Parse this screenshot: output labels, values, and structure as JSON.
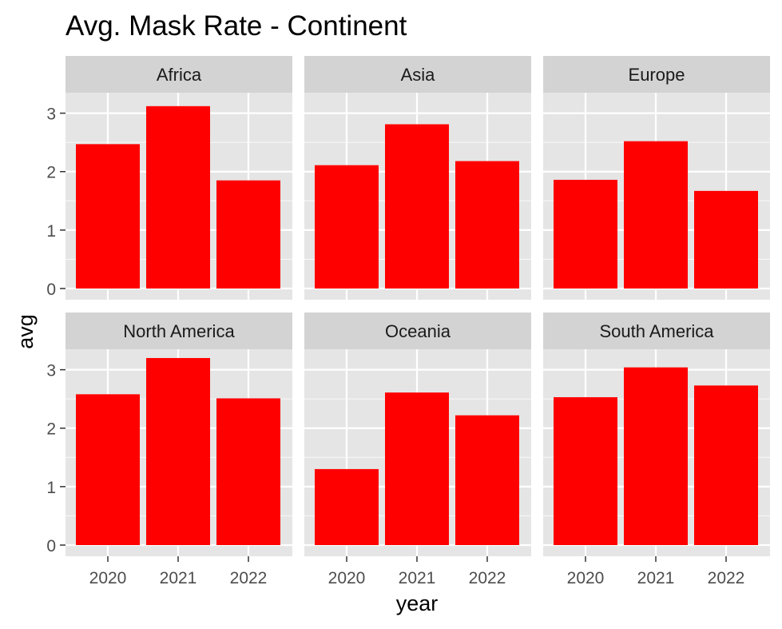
{
  "chart_data": {
    "type": "bar",
    "title": "Avg. Mask Rate - Continent",
    "xlabel": "year",
    "ylabel": "avg",
    "categories": [
      "2020",
      "2021",
      "2022"
    ],
    "ylim": [
      0,
      3.35
    ],
    "y_ticks": [
      "0",
      "1",
      "2",
      "3"
    ],
    "grid": true,
    "bar_color": "#ff0000",
    "panel_background": "#e5e5e5",
    "strip_background": "#d3d3d3",
    "panels": [
      {
        "name": "Africa",
        "values": [
          2.47,
          3.12,
          1.85
        ]
      },
      {
        "name": "Asia",
        "values": [
          2.11,
          2.81,
          2.18
        ]
      },
      {
        "name": "Europe",
        "values": [
          1.86,
          2.52,
          1.67
        ]
      },
      {
        "name": "North America",
        "values": [
          2.58,
          3.2,
          2.51
        ]
      },
      {
        "name": "Oceania",
        "values": [
          1.3,
          2.61,
          2.22
        ]
      },
      {
        "name": "South America",
        "values": [
          2.53,
          3.04,
          2.73
        ]
      }
    ]
  }
}
